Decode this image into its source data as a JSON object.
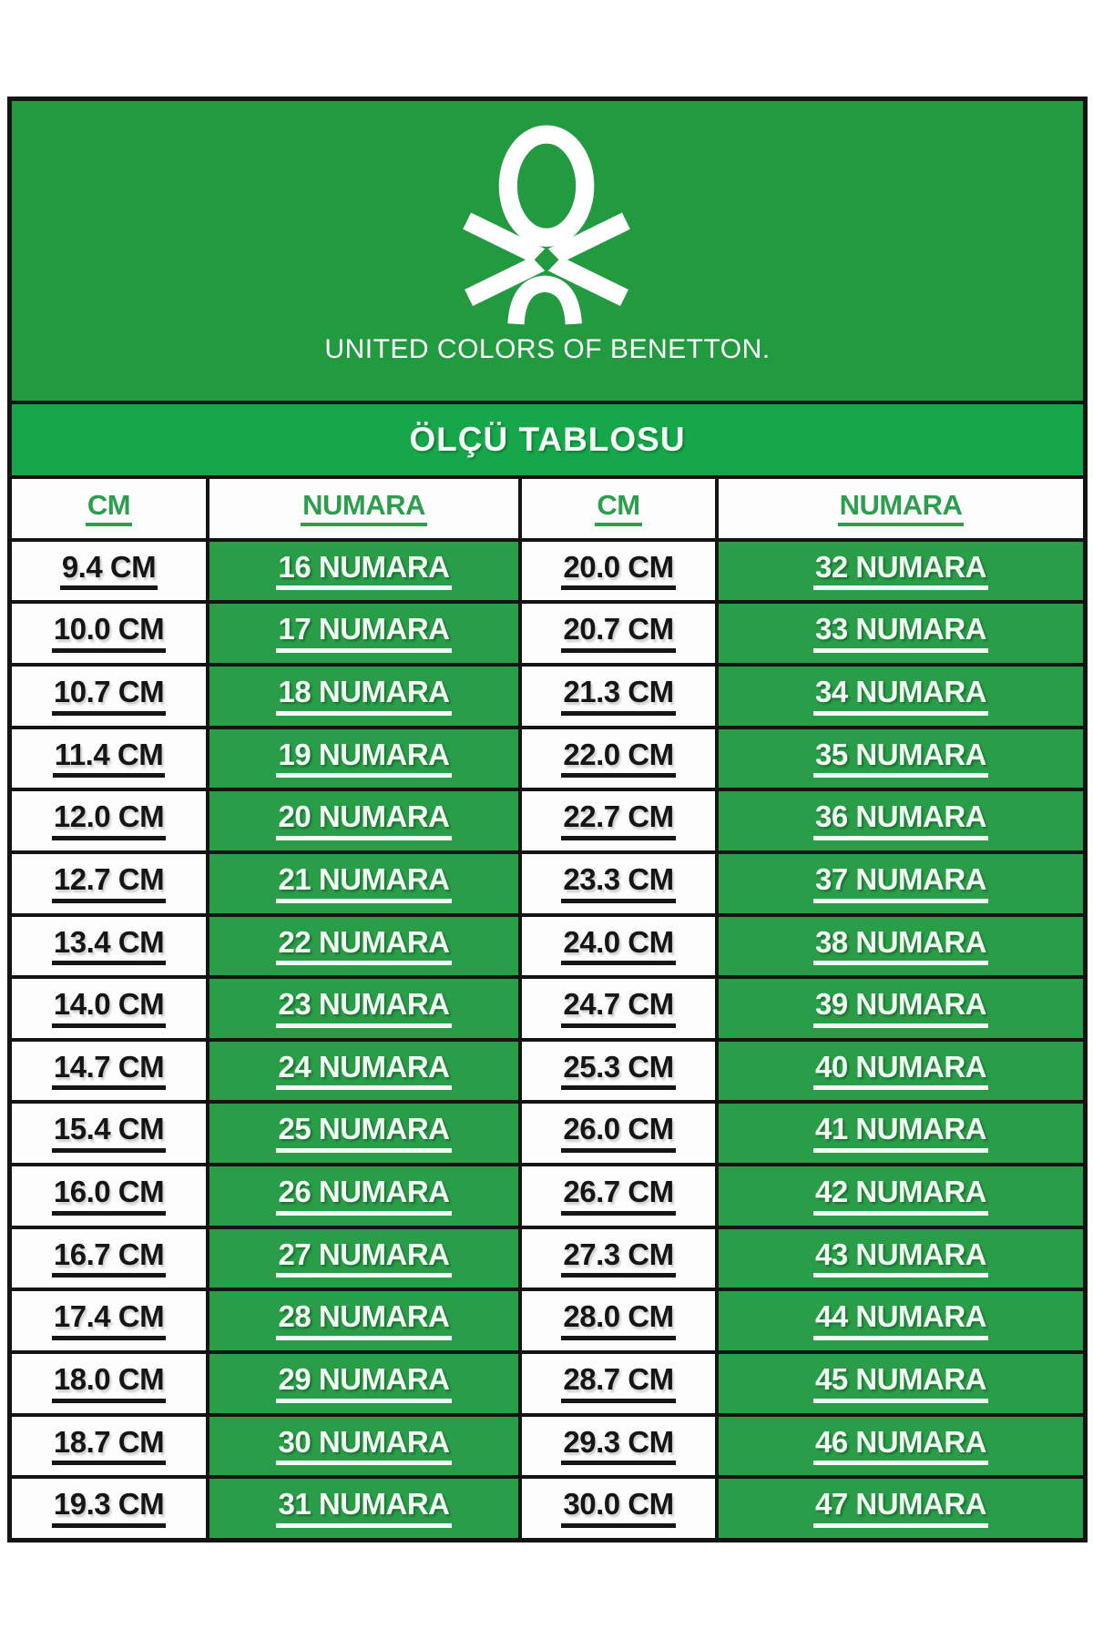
{
  "brand": {
    "logo": "benetton-knot-icon",
    "wordmark": "UNITED COLORS OF BENETTON."
  },
  "banner": {
    "title": "ÖLÇÜ TABLOSU"
  },
  "table": {
    "columns": [
      "CM",
      "NUMARA",
      "CM",
      "NUMARA"
    ],
    "rows": [
      [
        "9.4 CM",
        "16 NUMARA",
        "20.0 CM",
        "32 NUMARA"
      ],
      [
        "10.0 CM",
        "17 NUMARA",
        "20.7 CM",
        "33 NUMARA"
      ],
      [
        "10.7 CM",
        "18 NUMARA",
        "21.3 CM",
        "34 NUMARA"
      ],
      [
        "11.4 CM",
        "19 NUMARA",
        "22.0 CM",
        "35 NUMARA"
      ],
      [
        "12.0 CM",
        "20 NUMARA",
        "22.7 CM",
        "36 NUMARA"
      ],
      [
        "12.7 CM",
        "21 NUMARA",
        "23.3 CM",
        "37 NUMARA"
      ],
      [
        "13.4 CM",
        "22 NUMARA",
        "24.0 CM",
        "38 NUMARA"
      ],
      [
        "14.0 CM",
        "23 NUMARA",
        "24.7 CM",
        "39 NUMARA"
      ],
      [
        "14.7 CM",
        "24 NUMARA",
        "25.3 CM",
        "40 NUMARA"
      ],
      [
        "15.4 CM",
        "25 NUMARA",
        "26.0 CM",
        "41 NUMARA"
      ],
      [
        "16.0 CM",
        "26 NUMARA",
        "26.7 CM",
        "42 NUMARA"
      ],
      [
        "16.7 CM",
        "27 NUMARA",
        "27.3 CM",
        "43 NUMARA"
      ],
      [
        "17.4 CM",
        "28 NUMARA",
        "28.0 CM",
        "44 NUMARA"
      ],
      [
        "18.0 CM",
        "29 NUMARA",
        "28.7 CM",
        "45 NUMARA"
      ],
      [
        "18.7 CM",
        "30 NUMARA",
        "29.3 CM",
        "46 NUMARA"
      ],
      [
        "19.3 CM",
        "31 NUMARA",
        "30.0 CM",
        "47 NUMARA"
      ]
    ]
  },
  "colors": {
    "header_green": "#229a40",
    "banner_green": "#17a74b",
    "cell_green": "#2a9d48",
    "header_text_green": "#2d9e4d",
    "border_black": "#141414"
  }
}
